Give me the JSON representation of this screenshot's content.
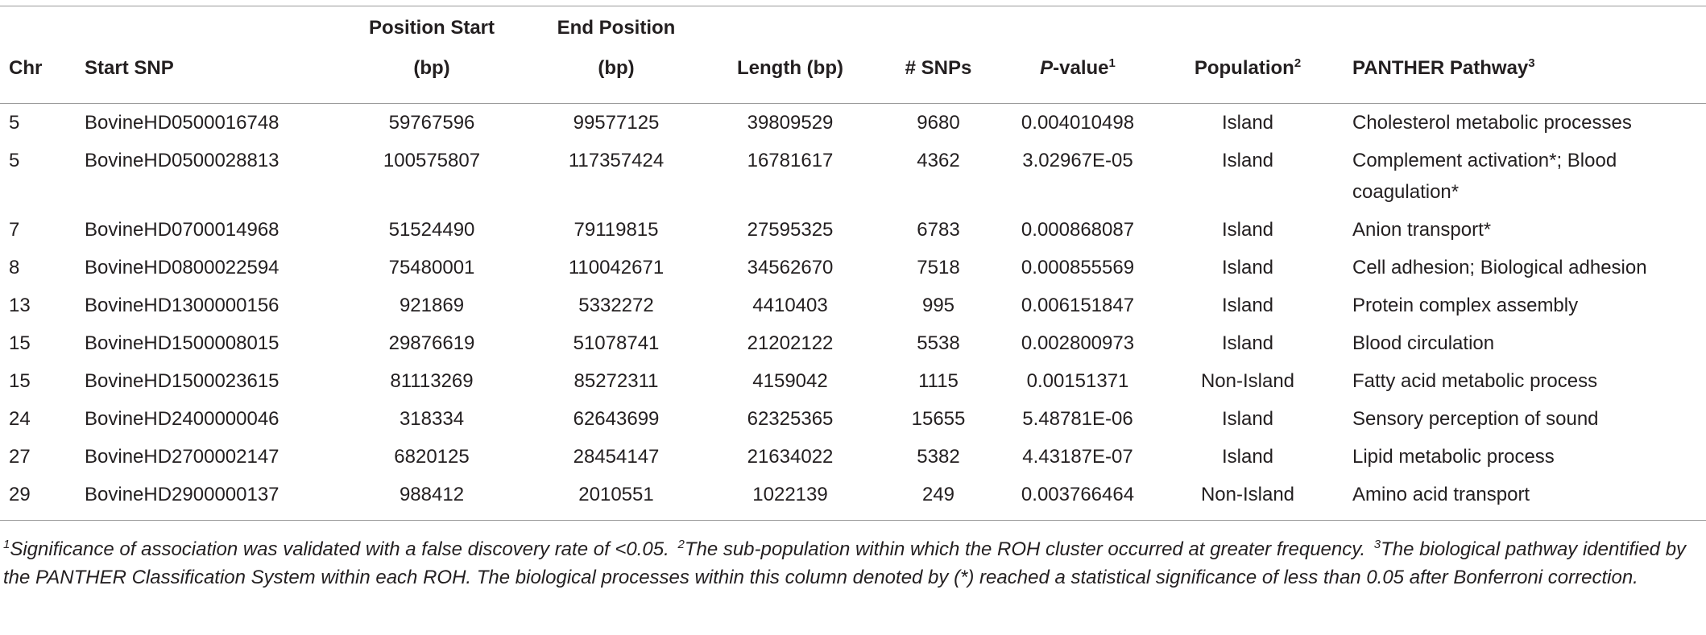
{
  "table": {
    "columns": [
      {
        "lines": [
          "Chr"
        ]
      },
      {
        "lines": [
          "Start SNP"
        ]
      },
      {
        "lines": [
          "Position Start",
          "(bp)"
        ]
      },
      {
        "lines": [
          "End Position",
          "(bp)"
        ]
      },
      {
        "lines": [
          "Length (bp)"
        ]
      },
      {
        "lines": [
          "# SNPs"
        ]
      },
      {
        "italic": "P",
        "lines": [
          "-value"
        ],
        "sup": "1"
      },
      {
        "lines": [
          "Population"
        ],
        "sup": "2"
      },
      {
        "lines": [
          "PANTHER Pathway"
        ],
        "sup": "3"
      }
    ],
    "rows": [
      [
        "5",
        "BovineHD0500016748",
        "59767596",
        "99577125",
        "39809529",
        "9680",
        "0.004010498",
        "Island",
        "Cholesterol metabolic processes"
      ],
      [
        "5",
        "BovineHD0500028813",
        "100575807",
        "117357424",
        "16781617",
        "4362",
        "3.02967E-05",
        "Island",
        "Complement activation*; Blood coagulation*"
      ],
      [
        "7",
        "BovineHD0700014968",
        "51524490",
        "79119815",
        "27595325",
        "6783",
        "0.000868087",
        "Island",
        "Anion transport*"
      ],
      [
        "8",
        "BovineHD0800022594",
        "75480001",
        "110042671",
        "34562670",
        "7518",
        "0.000855569",
        "Island",
        "Cell adhesion; Biological adhesion"
      ],
      [
        "13",
        "BovineHD1300000156",
        "921869",
        "5332272",
        "4410403",
        "995",
        "0.006151847",
        "Island",
        "Protein complex assembly"
      ],
      [
        "15",
        "BovineHD1500008015",
        "29876619",
        "51078741",
        "21202122",
        "5538",
        "0.002800973",
        "Island",
        "Blood circulation"
      ],
      [
        "15",
        "BovineHD1500023615",
        "81113269",
        "85272311",
        "4159042",
        "1115",
        "0.00151371",
        "Non-Island",
        "Fatty acid metabolic process"
      ],
      [
        "24",
        "BovineHD2400000046",
        "318334",
        "62643699",
        "62325365",
        "15655",
        "5.48781E-06",
        "Island",
        "Sensory perception of sound"
      ],
      [
        "27",
        "BovineHD2700002147",
        "6820125",
        "28454147",
        "21634022",
        "5382",
        "4.43187E-07",
        "Island",
        "Lipid metabolic process"
      ],
      [
        "29",
        "BovineHD2900000137",
        "988412",
        "2010551",
        "1022139",
        "249",
        "0.003766464",
        "Non-Island",
        "Amino acid transport"
      ]
    ],
    "notes": [
      {
        "sup": "1",
        "text": "Significance of association was validated with a false discovery rate of <0.05."
      },
      {
        "sup": "2",
        "text": "The sub-population within which the ROH cluster occurred at greater frequency."
      },
      {
        "sup": "3",
        "text": "The biological pathway identified by the PANTHER Classification System within each ROH. The biological processes within this column denoted by (*) reached a statistical significance of less than 0.05 after Bonferroni correction."
      }
    ]
  }
}
